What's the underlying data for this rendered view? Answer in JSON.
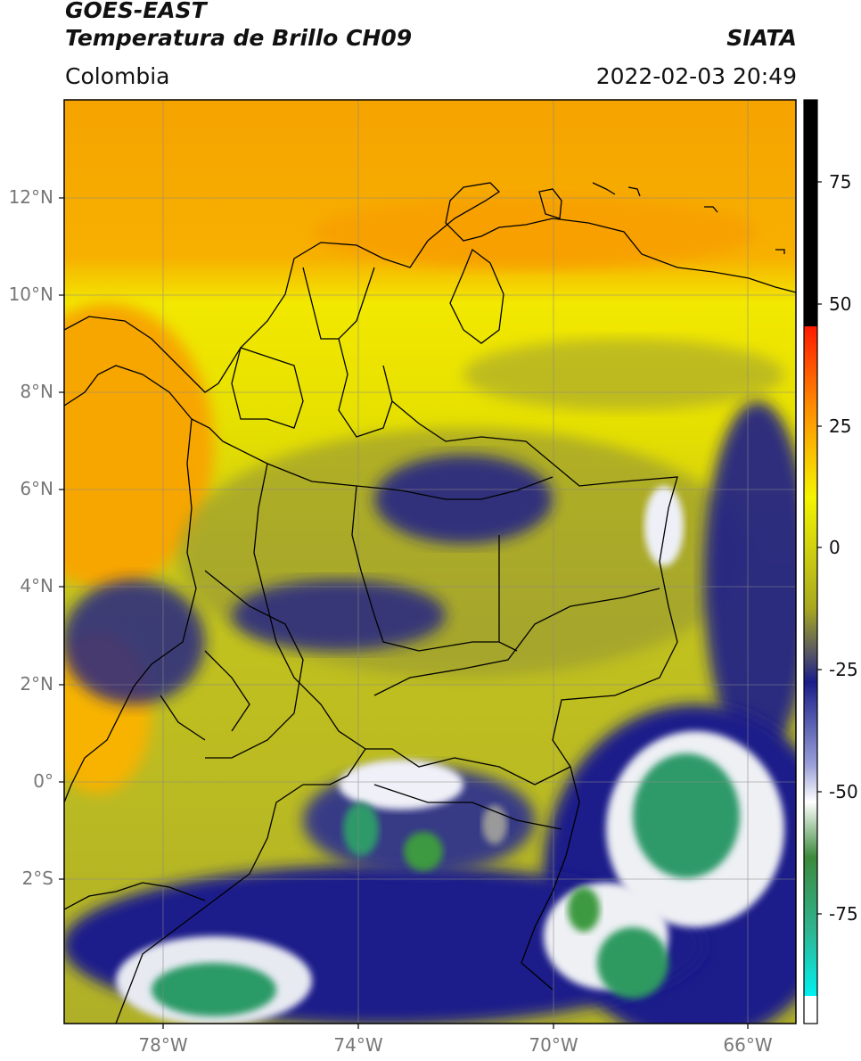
{
  "header": {
    "satellite": "GOES-EAST",
    "product": "Temperatura de Brillo CH09",
    "organization": "SIATA",
    "region": "Colombia",
    "timestamp": "2022-02-03 20:49"
  },
  "axes": {
    "lat_labels": [
      {
        "value": 12,
        "label": "12°N"
      },
      {
        "value": 10,
        "label": "10°N"
      },
      {
        "value": 8,
        "label": "8°N"
      },
      {
        "value": 6,
        "label": "6°N"
      },
      {
        "value": 4,
        "label": "4°N"
      },
      {
        "value": 2,
        "label": "2°N"
      },
      {
        "value": 0,
        "label": "0°"
      },
      {
        "value": -2,
        "label": "2°S"
      }
    ],
    "lon_labels": [
      {
        "value": -78,
        "label": "78°W"
      },
      {
        "value": -74,
        "label": "74°W"
      },
      {
        "value": -70,
        "label": "70°W"
      },
      {
        "value": -66,
        "label": "66°W"
      }
    ],
    "lat_range": [
      -5,
      14
    ],
    "lon_range": [
      -80,
      -65
    ],
    "grid": true
  },
  "colorbar": {
    "ticks": [
      {
        "value": 75,
        "label": "75"
      },
      {
        "value": 50,
        "label": "50"
      },
      {
        "value": 25,
        "label": "25"
      },
      {
        "value": 0,
        "label": "0"
      },
      {
        "value": -25,
        "label": "-25"
      },
      {
        "value": -50,
        "label": "-50"
      },
      {
        "value": -75,
        "label": "-75"
      }
    ],
    "range": [
      -95,
      90
    ]
  },
  "colors": {
    "warm_orange": "#f7a100",
    "yellow": "#f2f000",
    "olive": "#b8b820",
    "navy": "#1a1e8a",
    "white": "#f4f4f4",
    "green": "#3c9a3c",
    "teal": "#2fb592",
    "red": "#e31a1c",
    "black": "#000000"
  }
}
